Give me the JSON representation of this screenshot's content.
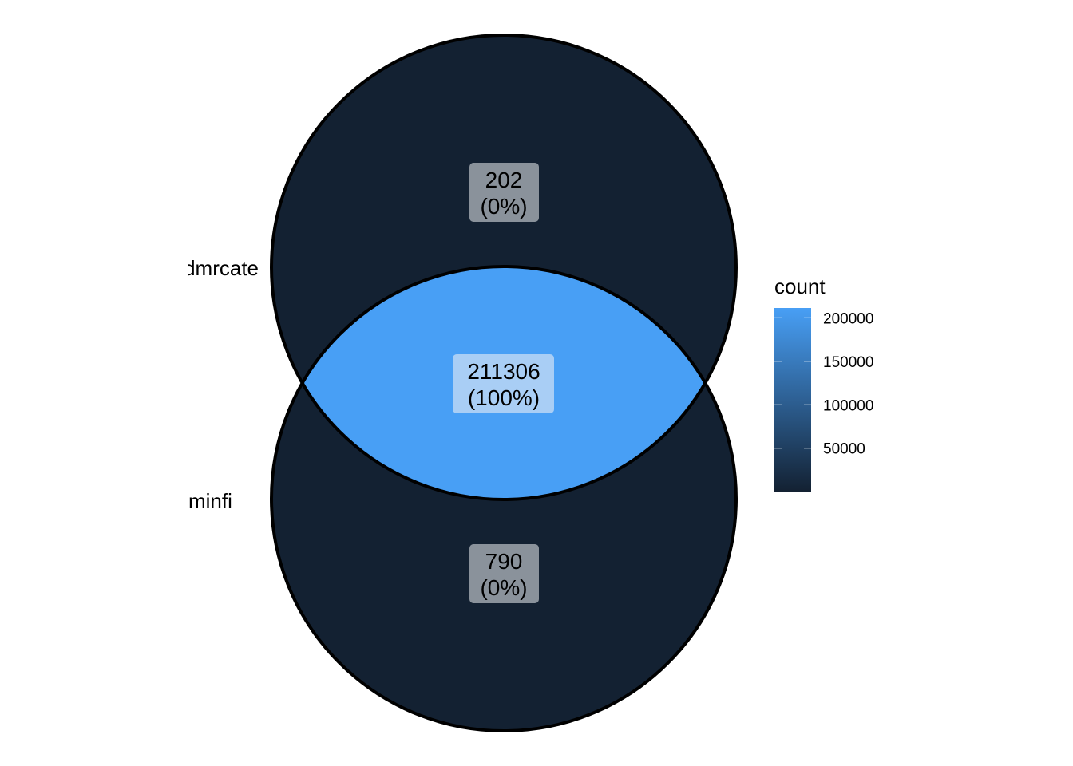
{
  "diagram": {
    "type": "venn",
    "sets": [
      {
        "label": "dmrcate",
        "visible_label": "mrcate"
      },
      {
        "label": "minfi",
        "visible_label": "minfi"
      }
    ],
    "regions": [
      {
        "id": "dmrcate_only",
        "count": 202,
        "count_text": "202",
        "percent_text": "(0%)"
      },
      {
        "id": "both",
        "count": 211306,
        "count_text": "211306",
        "percent_text": "(100%)"
      },
      {
        "id": "minfi_only",
        "count": 790,
        "count_text": "790",
        "percent_text": "(0%)"
      }
    ],
    "colors": {
      "low": "#132132",
      "high": "#489FF5",
      "outline": "#000000",
      "label_box_dark": "#8A929B",
      "label_box_light": "#A9CEF5"
    }
  },
  "legend": {
    "title": "count",
    "ticks": [
      {
        "value": 200000,
        "label": "200000"
      },
      {
        "value": 150000,
        "label": "150000"
      },
      {
        "value": 100000,
        "label": "100000"
      },
      {
        "value": 50000,
        "label": "50000"
      }
    ],
    "min": 202,
    "max": 211306
  }
}
